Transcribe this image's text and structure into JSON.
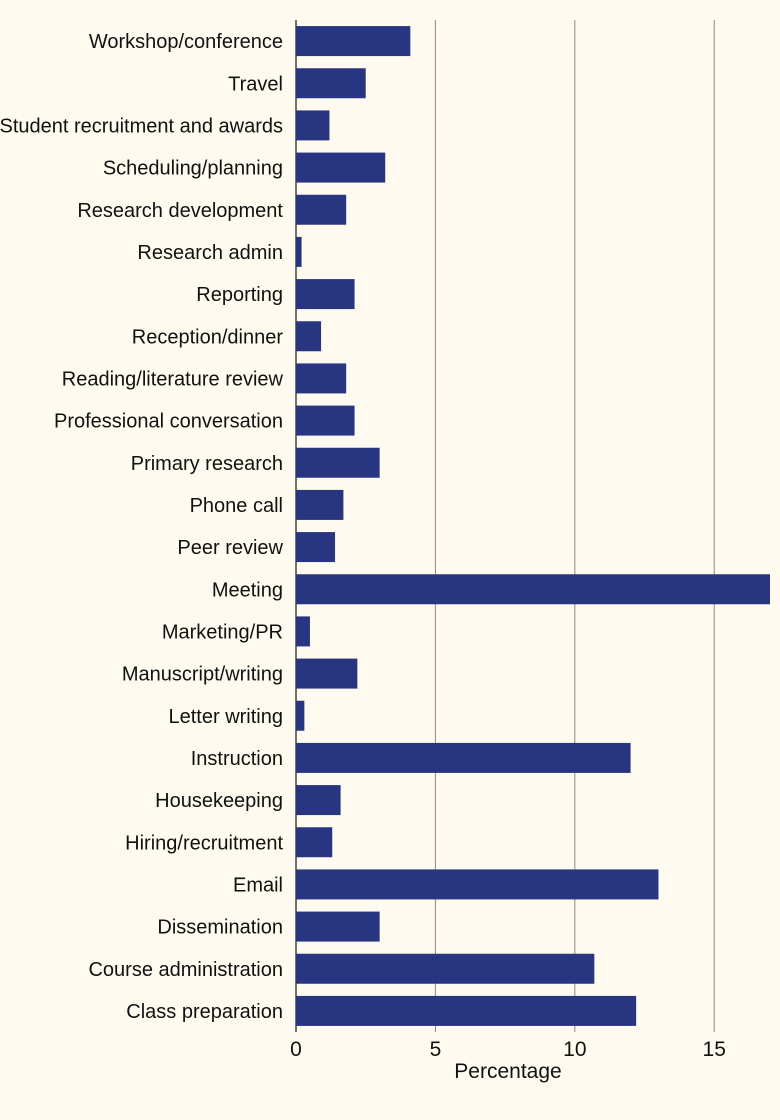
{
  "chart_data": {
    "type": "bar",
    "orientation": "horizontal",
    "title": "",
    "xlabel": "Percentage",
    "ylabel": "",
    "xlim": [
      0,
      17
    ],
    "xticks": [
      0,
      5,
      10,
      15
    ],
    "grid": true,
    "bar_color": "#283580",
    "categories": [
      "Workshop/conference",
      "Travel",
      "Student recruitment and awards",
      "Scheduling/planning",
      "Research development",
      "Research admin",
      "Reporting",
      "Reception/dinner",
      "Reading/literature review",
      "Professional conversation",
      "Primary research",
      "Phone call",
      "Peer review",
      "Meeting",
      "Marketing/PR",
      "Manuscript/writing",
      "Letter writing",
      "Instruction",
      "Housekeeping",
      "Hiring/recruitment",
      "Email",
      "Dissemination",
      "Course administration",
      "Class preparation"
    ],
    "values": [
      4.1,
      2.5,
      1.2,
      3.2,
      1.8,
      0.2,
      2.1,
      0.9,
      1.8,
      2.1,
      3.0,
      1.7,
      1.4,
      17.0,
      0.5,
      2.2,
      0.3,
      12.0,
      1.6,
      1.3,
      13.0,
      3.0,
      10.7,
      12.2
    ]
  }
}
